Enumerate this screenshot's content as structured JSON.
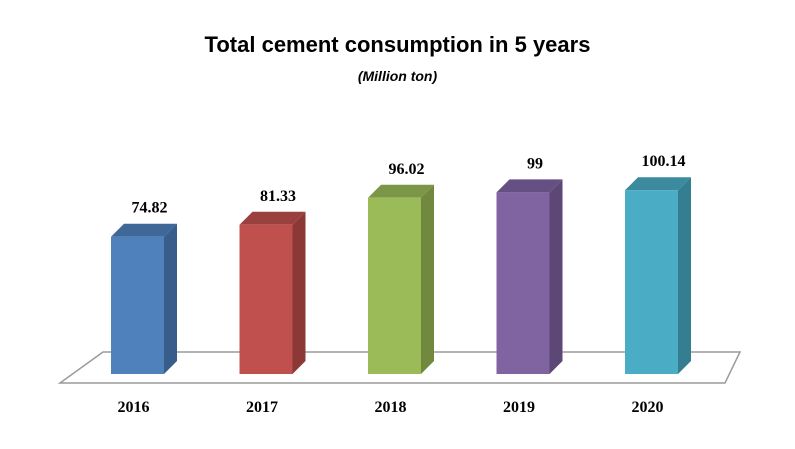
{
  "chart_data": {
    "type": "bar",
    "title": "Total cement consumption in 5 years",
    "subtitle": "(Million ton)",
    "categories": [
      "2016",
      "2017",
      "2018",
      "2019",
      "2020"
    ],
    "values": [
      74.82,
      81.33,
      96.02,
      99,
      100.14
    ],
    "value_labels": [
      "74.82",
      "81.33",
      "96.02",
      "99",
      "100.14"
    ],
    "colors": [
      "#4F81BD",
      "#C0504D",
      "#9BBB59",
      "#8064A2",
      "#4BACC6"
    ],
    "side_colors": [
      "#385D8A",
      "#8C3836",
      "#71893F",
      "#5C4776",
      "#357D91"
    ],
    "top_colors": [
      "#3F6797",
      "#9A403E",
      "#7C9647",
      "#665083",
      "#3C8A9E"
    ],
    "style": "3d-column",
    "grid": false,
    "legend": "none"
  }
}
